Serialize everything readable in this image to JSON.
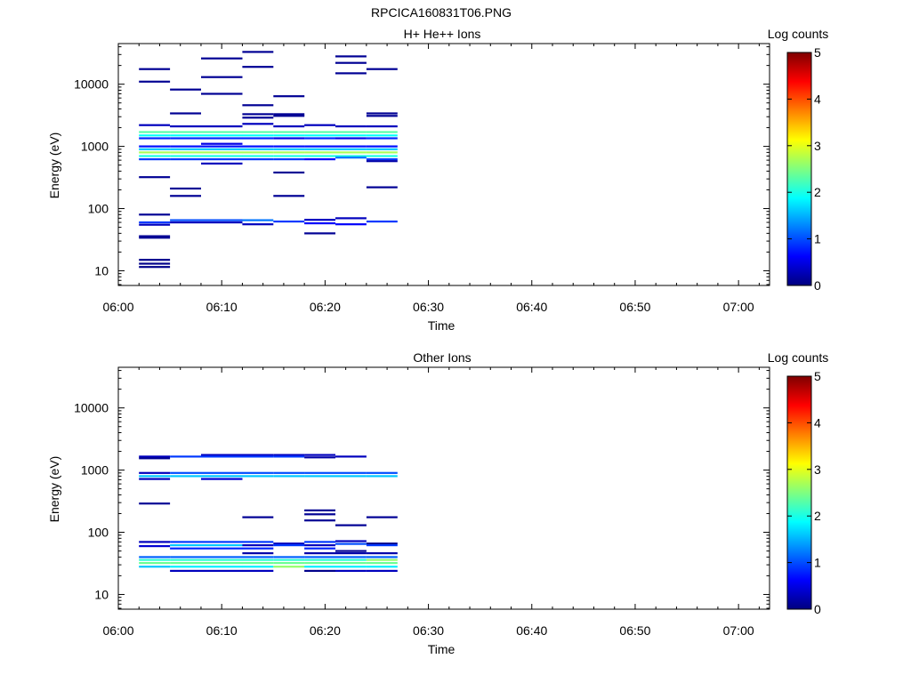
{
  "figure_title": "RPCICA160831T06.PNG",
  "chart_data": [
    {
      "type": "heatmap",
      "title": "H+ He++ Ions",
      "xlabel": "Time",
      "ylabel": "Energy (eV)",
      "x_ticks": [
        "06:00",
        "06:10",
        "06:20",
        "06:30",
        "06:40",
        "06:50",
        "07:00"
      ],
      "xlim": [
        "06:00",
        "07:03"
      ],
      "y_scale": "log",
      "ylim": [
        5.8,
        45000
      ],
      "y_ticks": [
        10,
        100,
        1000,
        10000
      ],
      "y_tick_labels": [
        "10",
        "100",
        "1000",
        "10000"
      ],
      "colorbar": {
        "label": "Log counts",
        "range": [
          0,
          5
        ],
        "ticks": [
          "0",
          "1",
          "2",
          "3",
          "4",
          "5"
        ]
      },
      "grid": false,
      "time_bins": [
        [
          "06:02",
          "06:05"
        ],
        [
          "06:05",
          "06:08"
        ],
        [
          "06:08",
          "06:12"
        ],
        [
          "06:12",
          "06:15"
        ],
        [
          "06:15",
          "06:18"
        ],
        [
          "06:18",
          "06:21"
        ],
        [
          "06:21",
          "06:24"
        ],
        [
          "06:24",
          "06:27"
        ]
      ],
      "cells": [
        [
          0,
          17500,
          0.1
        ],
        [
          0,
          11000,
          0.1
        ],
        [
          0,
          2200,
          0.3
        ],
        [
          0,
          1700,
          2.3
        ],
        [
          0,
          1500,
          1.9
        ],
        [
          0,
          1350,
          0.8
        ],
        [
          0,
          1000,
          0.7
        ],
        [
          0,
          900,
          1.6
        ],
        [
          0,
          800,
          2.7
        ],
        [
          0,
          700,
          2.0
        ],
        [
          0,
          620,
          0.9
        ],
        [
          0,
          320,
          0.1
        ],
        [
          0,
          80,
          0.1
        ],
        [
          0,
          60,
          0.9
        ],
        [
          0,
          55,
          0.3
        ],
        [
          0,
          36,
          0.1
        ],
        [
          0,
          34,
          0.1
        ],
        [
          0,
          15,
          0.05
        ],
        [
          0,
          13,
          0.05
        ],
        [
          0,
          11.5,
          0.05
        ],
        [
          1,
          8200,
          0.1
        ],
        [
          1,
          3400,
          0.1
        ],
        [
          1,
          2100,
          0.3
        ],
        [
          1,
          1700,
          2.3
        ],
        [
          1,
          1500,
          1.9
        ],
        [
          1,
          1350,
          0.8
        ],
        [
          1,
          1000,
          0.7
        ],
        [
          1,
          900,
          1.6
        ],
        [
          1,
          800,
          2.7
        ],
        [
          1,
          700,
          2.0
        ],
        [
          1,
          620,
          0.9
        ],
        [
          1,
          210,
          0.1
        ],
        [
          1,
          160,
          0.1
        ],
        [
          1,
          65,
          1.0
        ],
        [
          1,
          60,
          0.3
        ],
        [
          2,
          26000,
          0.1
        ],
        [
          2,
          13000,
          0.1
        ],
        [
          2,
          7000,
          0.1
        ],
        [
          2,
          2100,
          0.3
        ],
        [
          2,
          1700,
          2.3
        ],
        [
          2,
          1500,
          1.9
        ],
        [
          2,
          1350,
          0.8
        ],
        [
          2,
          1100,
          0.5
        ],
        [
          2,
          1000,
          0.7
        ],
        [
          2,
          900,
          1.6
        ],
        [
          2,
          800,
          2.7
        ],
        [
          2,
          700,
          2.0
        ],
        [
          2,
          620,
          0.9
        ],
        [
          2,
          530,
          0.3
        ],
        [
          2,
          65,
          1.0
        ],
        [
          2,
          60,
          0.3
        ],
        [
          3,
          33000,
          0.1
        ],
        [
          3,
          19000,
          0.1
        ],
        [
          3,
          4600,
          0.1
        ],
        [
          3,
          3300,
          0.1
        ],
        [
          3,
          2900,
          0.1
        ],
        [
          3,
          2300,
          0.3
        ],
        [
          3,
          1700,
          2.3
        ],
        [
          3,
          1500,
          1.9
        ],
        [
          3,
          1350,
          0.8
        ],
        [
          3,
          1000,
          0.7
        ],
        [
          3,
          900,
          1.6
        ],
        [
          3,
          800,
          2.7
        ],
        [
          3,
          700,
          2.0
        ],
        [
          3,
          620,
          0.9
        ],
        [
          3,
          65,
          1.2
        ],
        [
          3,
          56,
          0.3
        ],
        [
          4,
          6400,
          0.1
        ],
        [
          4,
          3300,
          0.1
        ],
        [
          4,
          3100,
          0.1
        ],
        [
          4,
          2100,
          0.3
        ],
        [
          4,
          1700,
          2.3
        ],
        [
          4,
          1500,
          1.9
        ],
        [
          4,
          1350,
          0.5
        ],
        [
          4,
          1000,
          0.7
        ],
        [
          4,
          900,
          1.6
        ],
        [
          4,
          800,
          2.7
        ],
        [
          4,
          700,
          2.0
        ],
        [
          4,
          620,
          0.9
        ],
        [
          4,
          380,
          0.1
        ],
        [
          4,
          160,
          0.1
        ],
        [
          4,
          62,
          0.9
        ],
        [
          5,
          2200,
          0.3
        ],
        [
          5,
          1700,
          2.3
        ],
        [
          5,
          1500,
          1.9
        ],
        [
          5,
          1350,
          0.8
        ],
        [
          5,
          1000,
          0.7
        ],
        [
          5,
          900,
          1.6
        ],
        [
          5,
          800,
          2.7
        ],
        [
          5,
          700,
          2.0
        ],
        [
          5,
          620,
          0.6
        ],
        [
          5,
          66,
          0.3
        ],
        [
          5,
          58,
          0.6
        ],
        [
          5,
          40,
          0.1
        ],
        [
          6,
          28000,
          0.1
        ],
        [
          6,
          22000,
          0.1
        ],
        [
          6,
          15000,
          0.1
        ],
        [
          6,
          2100,
          0.3
        ],
        [
          6,
          1700,
          2.3
        ],
        [
          6,
          1500,
          1.9
        ],
        [
          6,
          1350,
          0.5
        ],
        [
          6,
          1000,
          0.7
        ],
        [
          6,
          900,
          1.6
        ],
        [
          6,
          800,
          2.7
        ],
        [
          6,
          700,
          2.0
        ],
        [
          6,
          660,
          1.2
        ],
        [
          6,
          70,
          0.3
        ],
        [
          6,
          56,
          0.6
        ],
        [
          7,
          17500,
          0.1
        ],
        [
          7,
          3400,
          0.1
        ],
        [
          7,
          3100,
          0.1
        ],
        [
          7,
          2100,
          0.3
        ],
        [
          7,
          1700,
          2.3
        ],
        [
          7,
          1500,
          1.9
        ],
        [
          7,
          1350,
          0.8
        ],
        [
          7,
          1000,
          0.7
        ],
        [
          7,
          900,
          1.6
        ],
        [
          7,
          800,
          2.7
        ],
        [
          7,
          700,
          2.0
        ],
        [
          7,
          620,
          0.9
        ],
        [
          7,
          580,
          0.2
        ],
        [
          7,
          220,
          0.1
        ],
        [
          7,
          62,
          0.9
        ]
      ]
    },
    {
      "type": "heatmap",
      "title": "Other Ions",
      "xlabel": "Time",
      "ylabel": "Energy (eV)",
      "x_ticks": [
        "06:00",
        "06:10",
        "06:20",
        "06:30",
        "06:40",
        "06:50",
        "07:00"
      ],
      "xlim": [
        "06:00",
        "07:03"
      ],
      "y_scale": "log",
      "ylim": [
        5.8,
        45000
      ],
      "y_ticks": [
        10,
        100,
        1000,
        10000
      ],
      "y_tick_labels": [
        "10",
        "100",
        "1000",
        "10000"
      ],
      "colorbar": {
        "label": "Log counts",
        "range": [
          0,
          5
        ],
        "ticks": [
          "0",
          "1",
          "2",
          "3",
          "4",
          "5"
        ]
      },
      "grid": false,
      "time_bins": [
        [
          "06:02",
          "06:05"
        ],
        [
          "06:05",
          "06:08"
        ],
        [
          "06:08",
          "06:12"
        ],
        [
          "06:12",
          "06:15"
        ],
        [
          "06:15",
          "06:18"
        ],
        [
          "06:18",
          "06:21"
        ],
        [
          "06:21",
          "06:24"
        ],
        [
          "06:24",
          "06:27"
        ]
      ],
      "cells": [
        [
          0,
          1650,
          0.3
        ],
        [
          0,
          1550,
          0.1
        ],
        [
          0,
          900,
          0.3
        ],
        [
          0,
          800,
          1.6
        ],
        [
          0,
          720,
          0.3
        ],
        [
          0,
          290,
          0.1
        ],
        [
          0,
          70,
          0.3
        ],
        [
          0,
          60,
          0.4
        ],
        [
          0,
          40,
          1.1
        ],
        [
          0,
          36,
          2.1
        ],
        [
          0,
          32,
          2.4
        ],
        [
          0,
          28,
          1.6
        ],
        [
          1,
          1650,
          0.9
        ],
        [
          1,
          900,
          1.0
        ],
        [
          1,
          800,
          1.6
        ],
        [
          1,
          70,
          0.9
        ],
        [
          1,
          62,
          1.6
        ],
        [
          1,
          55,
          0.8
        ],
        [
          1,
          40,
          1.1
        ],
        [
          1,
          36,
          2.1
        ],
        [
          1,
          32,
          2.4
        ],
        [
          1,
          28,
          1.8
        ],
        [
          1,
          24,
          0.3
        ],
        [
          2,
          1750,
          0.3
        ],
        [
          2,
          1650,
          0.9
        ],
        [
          2,
          900,
          1.0
        ],
        [
          2,
          800,
          1.6
        ],
        [
          2,
          720,
          0.4
        ],
        [
          2,
          70,
          0.9
        ],
        [
          2,
          62,
          1.6
        ],
        [
          2,
          55,
          0.8
        ],
        [
          2,
          40,
          1.1
        ],
        [
          2,
          36,
          2.1
        ],
        [
          2,
          32,
          2.4
        ],
        [
          2,
          28,
          1.8
        ],
        [
          2,
          24,
          0.3
        ],
        [
          3,
          1750,
          0.3
        ],
        [
          3,
          1650,
          0.9
        ],
        [
          3,
          900,
          1.0
        ],
        [
          3,
          800,
          1.6
        ],
        [
          3,
          175,
          0.1
        ],
        [
          3,
          70,
          0.9
        ],
        [
          3,
          62,
          0.3
        ],
        [
          3,
          55,
          0.8
        ],
        [
          3,
          46,
          0.2
        ],
        [
          3,
          40,
          1.1
        ],
        [
          3,
          36,
          2.1
        ],
        [
          3,
          32,
          2.4
        ],
        [
          3,
          28,
          1.8
        ],
        [
          3,
          24,
          0.3
        ],
        [
          4,
          1750,
          0.3
        ],
        [
          4,
          1650,
          0.9
        ],
        [
          4,
          900,
          1.0
        ],
        [
          4,
          800,
          1.6
        ],
        [
          4,
          66,
          0.3
        ],
        [
          4,
          62,
          0.9
        ],
        [
          4,
          40,
          1.1
        ],
        [
          4,
          36,
          2.1
        ],
        [
          4,
          32,
          2.4
        ],
        [
          4,
          28,
          2.6
        ],
        [
          5,
          1750,
          0.3
        ],
        [
          5,
          1600,
          0.2
        ],
        [
          5,
          900,
          1.0
        ],
        [
          5,
          800,
          1.6
        ],
        [
          5,
          225,
          0.1
        ],
        [
          5,
          195,
          0.1
        ],
        [
          5,
          155,
          0.1
        ],
        [
          5,
          70,
          0.9
        ],
        [
          5,
          62,
          0.3
        ],
        [
          5,
          55,
          0.8
        ],
        [
          5,
          46,
          0.2
        ],
        [
          5,
          40,
          1.1
        ],
        [
          5,
          36,
          2.1
        ],
        [
          5,
          32,
          2.4
        ],
        [
          5,
          28,
          1.8
        ],
        [
          5,
          24,
          0.05
        ],
        [
          6,
          1650,
          0.3
        ],
        [
          6,
          900,
          1.0
        ],
        [
          6,
          800,
          1.6
        ],
        [
          6,
          130,
          0.1
        ],
        [
          6,
          72,
          0.3
        ],
        [
          6,
          65,
          1.0
        ],
        [
          6,
          50,
          0.1
        ],
        [
          6,
          46,
          0.2
        ],
        [
          6,
          40,
          1.1
        ],
        [
          6,
          36,
          2.1
        ],
        [
          6,
          32,
          2.4
        ],
        [
          6,
          28,
          1.8
        ],
        [
          6,
          24,
          0.3
        ],
        [
          7,
          900,
          1.0
        ],
        [
          7,
          800,
          1.6
        ],
        [
          7,
          175,
          0.1
        ],
        [
          7,
          66,
          0.05
        ],
        [
          7,
          62,
          0.9
        ],
        [
          7,
          46,
          0.2
        ],
        [
          7,
          40,
          1.1
        ],
        [
          7,
          36,
          2.6
        ],
        [
          7,
          32,
          2.4
        ],
        [
          7,
          28,
          1.8
        ],
        [
          7,
          24,
          0.3
        ]
      ]
    }
  ]
}
